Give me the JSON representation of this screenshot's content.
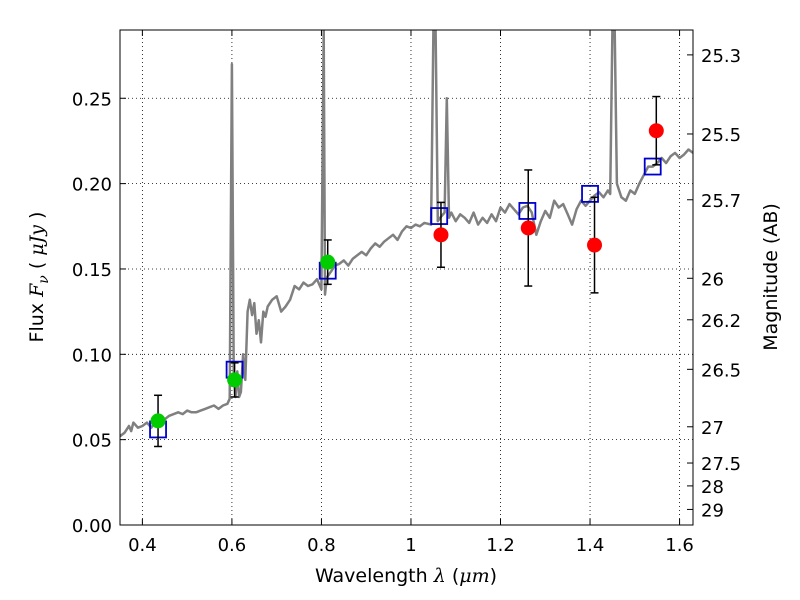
{
  "chart_data": {
    "type": "scatter",
    "xlabel": {
      "prefix": "Wavelength",
      "symbol": "λ",
      "unit_open": "(",
      "unit": "μm",
      "unit_close": ")"
    },
    "ylabel": {
      "prefix": "Flux",
      "symbol": "F",
      "subscript": "ν",
      "unit_open": "(",
      "unit": "μJy",
      "unit_close": ")"
    },
    "y2label": "Magnitude (AB)",
    "xlim": [
      0.35,
      1.63
    ],
    "ylim": [
      0.0,
      0.29
    ],
    "xticks": [
      0.4,
      0.6,
      0.8,
      1.0,
      1.2,
      1.4,
      1.6
    ],
    "xticklabels": [
      "0.4",
      "0.6",
      "0.8",
      "1",
      "1.2",
      "1.4",
      "1.6"
    ],
    "yticks": [
      0.0,
      0.05,
      0.1,
      0.15,
      0.2,
      0.25
    ],
    "yticklabels": [
      "0.00",
      "0.05",
      "0.10",
      "0.15",
      "0.20",
      "0.25"
    ],
    "y2ticks": [
      25.3,
      25.5,
      25.7,
      26,
      26.2,
      26.5,
      27,
      27.5,
      28,
      29
    ],
    "y2ticklabels": [
      "25.3",
      "25.5",
      "25.7",
      "26",
      "26.2",
      "26.5",
      "27",
      "27.5",
      "28",
      "29"
    ],
    "grid": true,
    "colors": {
      "model": "#808080",
      "optical": "#00cc00",
      "nir": "#ff0000",
      "model_phot": "#0000cc",
      "errorbar": "#000000"
    },
    "model_spectrum": [
      [
        0.35,
        0.052
      ],
      [
        0.36,
        0.054
      ],
      [
        0.37,
        0.058
      ],
      [
        0.375,
        0.055
      ],
      [
        0.38,
        0.06
      ],
      [
        0.39,
        0.057
      ],
      [
        0.4,
        0.058
      ],
      [
        0.41,
        0.06
      ],
      [
        0.42,
        0.057
      ],
      [
        0.43,
        0.061
      ],
      [
        0.44,
        0.063
      ],
      [
        0.45,
        0.062
      ],
      [
        0.46,
        0.064
      ],
      [
        0.47,
        0.065
      ],
      [
        0.48,
        0.066
      ],
      [
        0.49,
        0.065
      ],
      [
        0.5,
        0.067
      ],
      [
        0.51,
        0.066
      ],
      [
        0.52,
        0.066
      ],
      [
        0.53,
        0.067
      ],
      [
        0.54,
        0.068
      ],
      [
        0.55,
        0.069
      ],
      [
        0.56,
        0.07
      ],
      [
        0.57,
        0.068
      ],
      [
        0.58,
        0.07
      ],
      [
        0.59,
        0.071
      ],
      [
        0.595,
        0.074
      ],
      [
        0.6,
        0.27
      ],
      [
        0.604,
        0.09
      ],
      [
        0.608,
        0.075
      ],
      [
        0.612,
        0.09
      ],
      [
        0.616,
        0.075
      ],
      [
        0.62,
        0.078
      ],
      [
        0.625,
        0.1
      ],
      [
        0.63,
        0.085
      ],
      [
        0.635,
        0.125
      ],
      [
        0.64,
        0.132
      ],
      [
        0.645,
        0.123
      ],
      [
        0.65,
        0.13
      ],
      [
        0.655,
        0.112
      ],
      [
        0.66,
        0.12
      ],
      [
        0.665,
        0.107
      ],
      [
        0.67,
        0.125
      ],
      [
        0.675,
        0.122
      ],
      [
        0.68,
        0.128
      ],
      [
        0.69,
        0.132
      ],
      [
        0.7,
        0.134
      ],
      [
        0.71,
        0.125
      ],
      [
        0.72,
        0.128
      ],
      [
        0.73,
        0.132
      ],
      [
        0.74,
        0.14
      ],
      [
        0.75,
        0.138
      ],
      [
        0.76,
        0.142
      ],
      [
        0.77,
        0.14
      ],
      [
        0.78,
        0.141
      ],
      [
        0.79,
        0.144
      ],
      [
        0.8,
        0.138
      ],
      [
        0.805,
        0.29
      ],
      [
        0.808,
        0.135
      ],
      [
        0.812,
        0.145
      ],
      [
        0.82,
        0.148
      ],
      [
        0.83,
        0.152
      ],
      [
        0.84,
        0.153
      ],
      [
        0.85,
        0.155
      ],
      [
        0.86,
        0.152
      ],
      [
        0.87,
        0.156
      ],
      [
        0.88,
        0.158
      ],
      [
        0.89,
        0.16
      ],
      [
        0.9,
        0.158
      ],
      [
        0.91,
        0.162
      ],
      [
        0.92,
        0.165
      ],
      [
        0.93,
        0.163
      ],
      [
        0.94,
        0.166
      ],
      [
        0.95,
        0.168
      ],
      [
        0.96,
        0.17
      ],
      [
        0.97,
        0.167
      ],
      [
        0.98,
        0.172
      ],
      [
        0.99,
        0.175
      ],
      [
        1.0,
        0.174
      ],
      [
        1.01,
        0.176
      ],
      [
        1.02,
        0.175
      ],
      [
        1.03,
        0.177
      ],
      [
        1.045,
        0.176
      ],
      [
        1.05,
        0.29
      ],
      [
        1.055,
        0.29
      ],
      [
        1.06,
        0.178
      ],
      [
        1.065,
        0.18
      ],
      [
        1.075,
        0.183
      ],
      [
        1.08,
        0.25
      ],
      [
        1.085,
        0.18
      ],
      [
        1.09,
        0.183
      ],
      [
        1.1,
        0.178
      ],
      [
        1.11,
        0.182
      ],
      [
        1.12,
        0.18
      ],
      [
        1.13,
        0.177
      ],
      [
        1.14,
        0.183
      ],
      [
        1.15,
        0.176
      ],
      [
        1.16,
        0.18
      ],
      [
        1.17,
        0.177
      ],
      [
        1.18,
        0.182
      ],
      [
        1.19,
        0.178
      ],
      [
        1.2,
        0.186
      ],
      [
        1.21,
        0.183
      ],
      [
        1.22,
        0.188
      ],
      [
        1.23,
        0.185
      ],
      [
        1.24,
        0.182
      ],
      [
        1.25,
        0.186
      ],
      [
        1.26,
        0.187
      ],
      [
        1.27,
        0.183
      ],
      [
        1.28,
        0.17
      ],
      [
        1.29,
        0.178
      ],
      [
        1.3,
        0.184
      ],
      [
        1.31,
        0.18
      ],
      [
        1.32,
        0.19
      ],
      [
        1.33,
        0.186
      ],
      [
        1.34,
        0.188
      ],
      [
        1.35,
        0.182
      ],
      [
        1.36,
        0.176
      ],
      [
        1.37,
        0.185
      ],
      [
        1.38,
        0.19
      ],
      [
        1.39,
        0.187
      ],
      [
        1.4,
        0.19
      ],
      [
        1.41,
        0.193
      ],
      [
        1.42,
        0.195
      ],
      [
        1.43,
        0.192
      ],
      [
        1.44,
        0.196
      ],
      [
        1.445,
        0.194
      ],
      [
        1.45,
        0.29
      ],
      [
        1.455,
        0.29
      ],
      [
        1.46,
        0.2
      ],
      [
        1.47,
        0.192
      ],
      [
        1.48,
        0.19
      ],
      [
        1.49,
        0.196
      ],
      [
        1.5,
        0.194
      ],
      [
        1.51,
        0.2
      ],
      [
        1.52,
        0.205
      ],
      [
        1.53,
        0.21
      ],
      [
        1.54,
        0.21
      ],
      [
        1.55,
        0.212
      ],
      [
        1.56,
        0.215
      ],
      [
        1.57,
        0.212
      ],
      [
        1.58,
        0.216
      ],
      [
        1.59,
        0.218
      ],
      [
        1.6,
        0.215
      ],
      [
        1.61,
        0.217
      ],
      [
        1.62,
        0.22
      ],
      [
        1.63,
        0.218
      ]
    ],
    "model_photometry": [
      {
        "x": 0.435,
        "y": 0.056
      },
      {
        "x": 0.606,
        "y": 0.091
      },
      {
        "x": 0.814,
        "y": 0.149
      },
      {
        "x": 1.063,
        "y": 0.181
      },
      {
        "x": 1.26,
        "y": 0.184
      },
      {
        "x": 1.4,
        "y": 0.194
      },
      {
        "x": 1.54,
        "y": 0.21
      }
    ],
    "optical_points": [
      {
        "x": 0.435,
        "y": 0.061,
        "err": 0.015
      },
      {
        "x": 0.606,
        "y": 0.085,
        "err": 0.01
      },
      {
        "x": 0.814,
        "y": 0.154,
        "err": 0.013
      }
    ],
    "nir_points": [
      {
        "x": 1.067,
        "y": 0.17,
        "err": 0.019
      },
      {
        "x": 1.262,
        "y": 0.174,
        "err": 0.034
      },
      {
        "x": 1.41,
        "y": 0.164,
        "err": 0.028
      },
      {
        "x": 1.548,
        "y": 0.231,
        "err": 0.02
      }
    ]
  }
}
